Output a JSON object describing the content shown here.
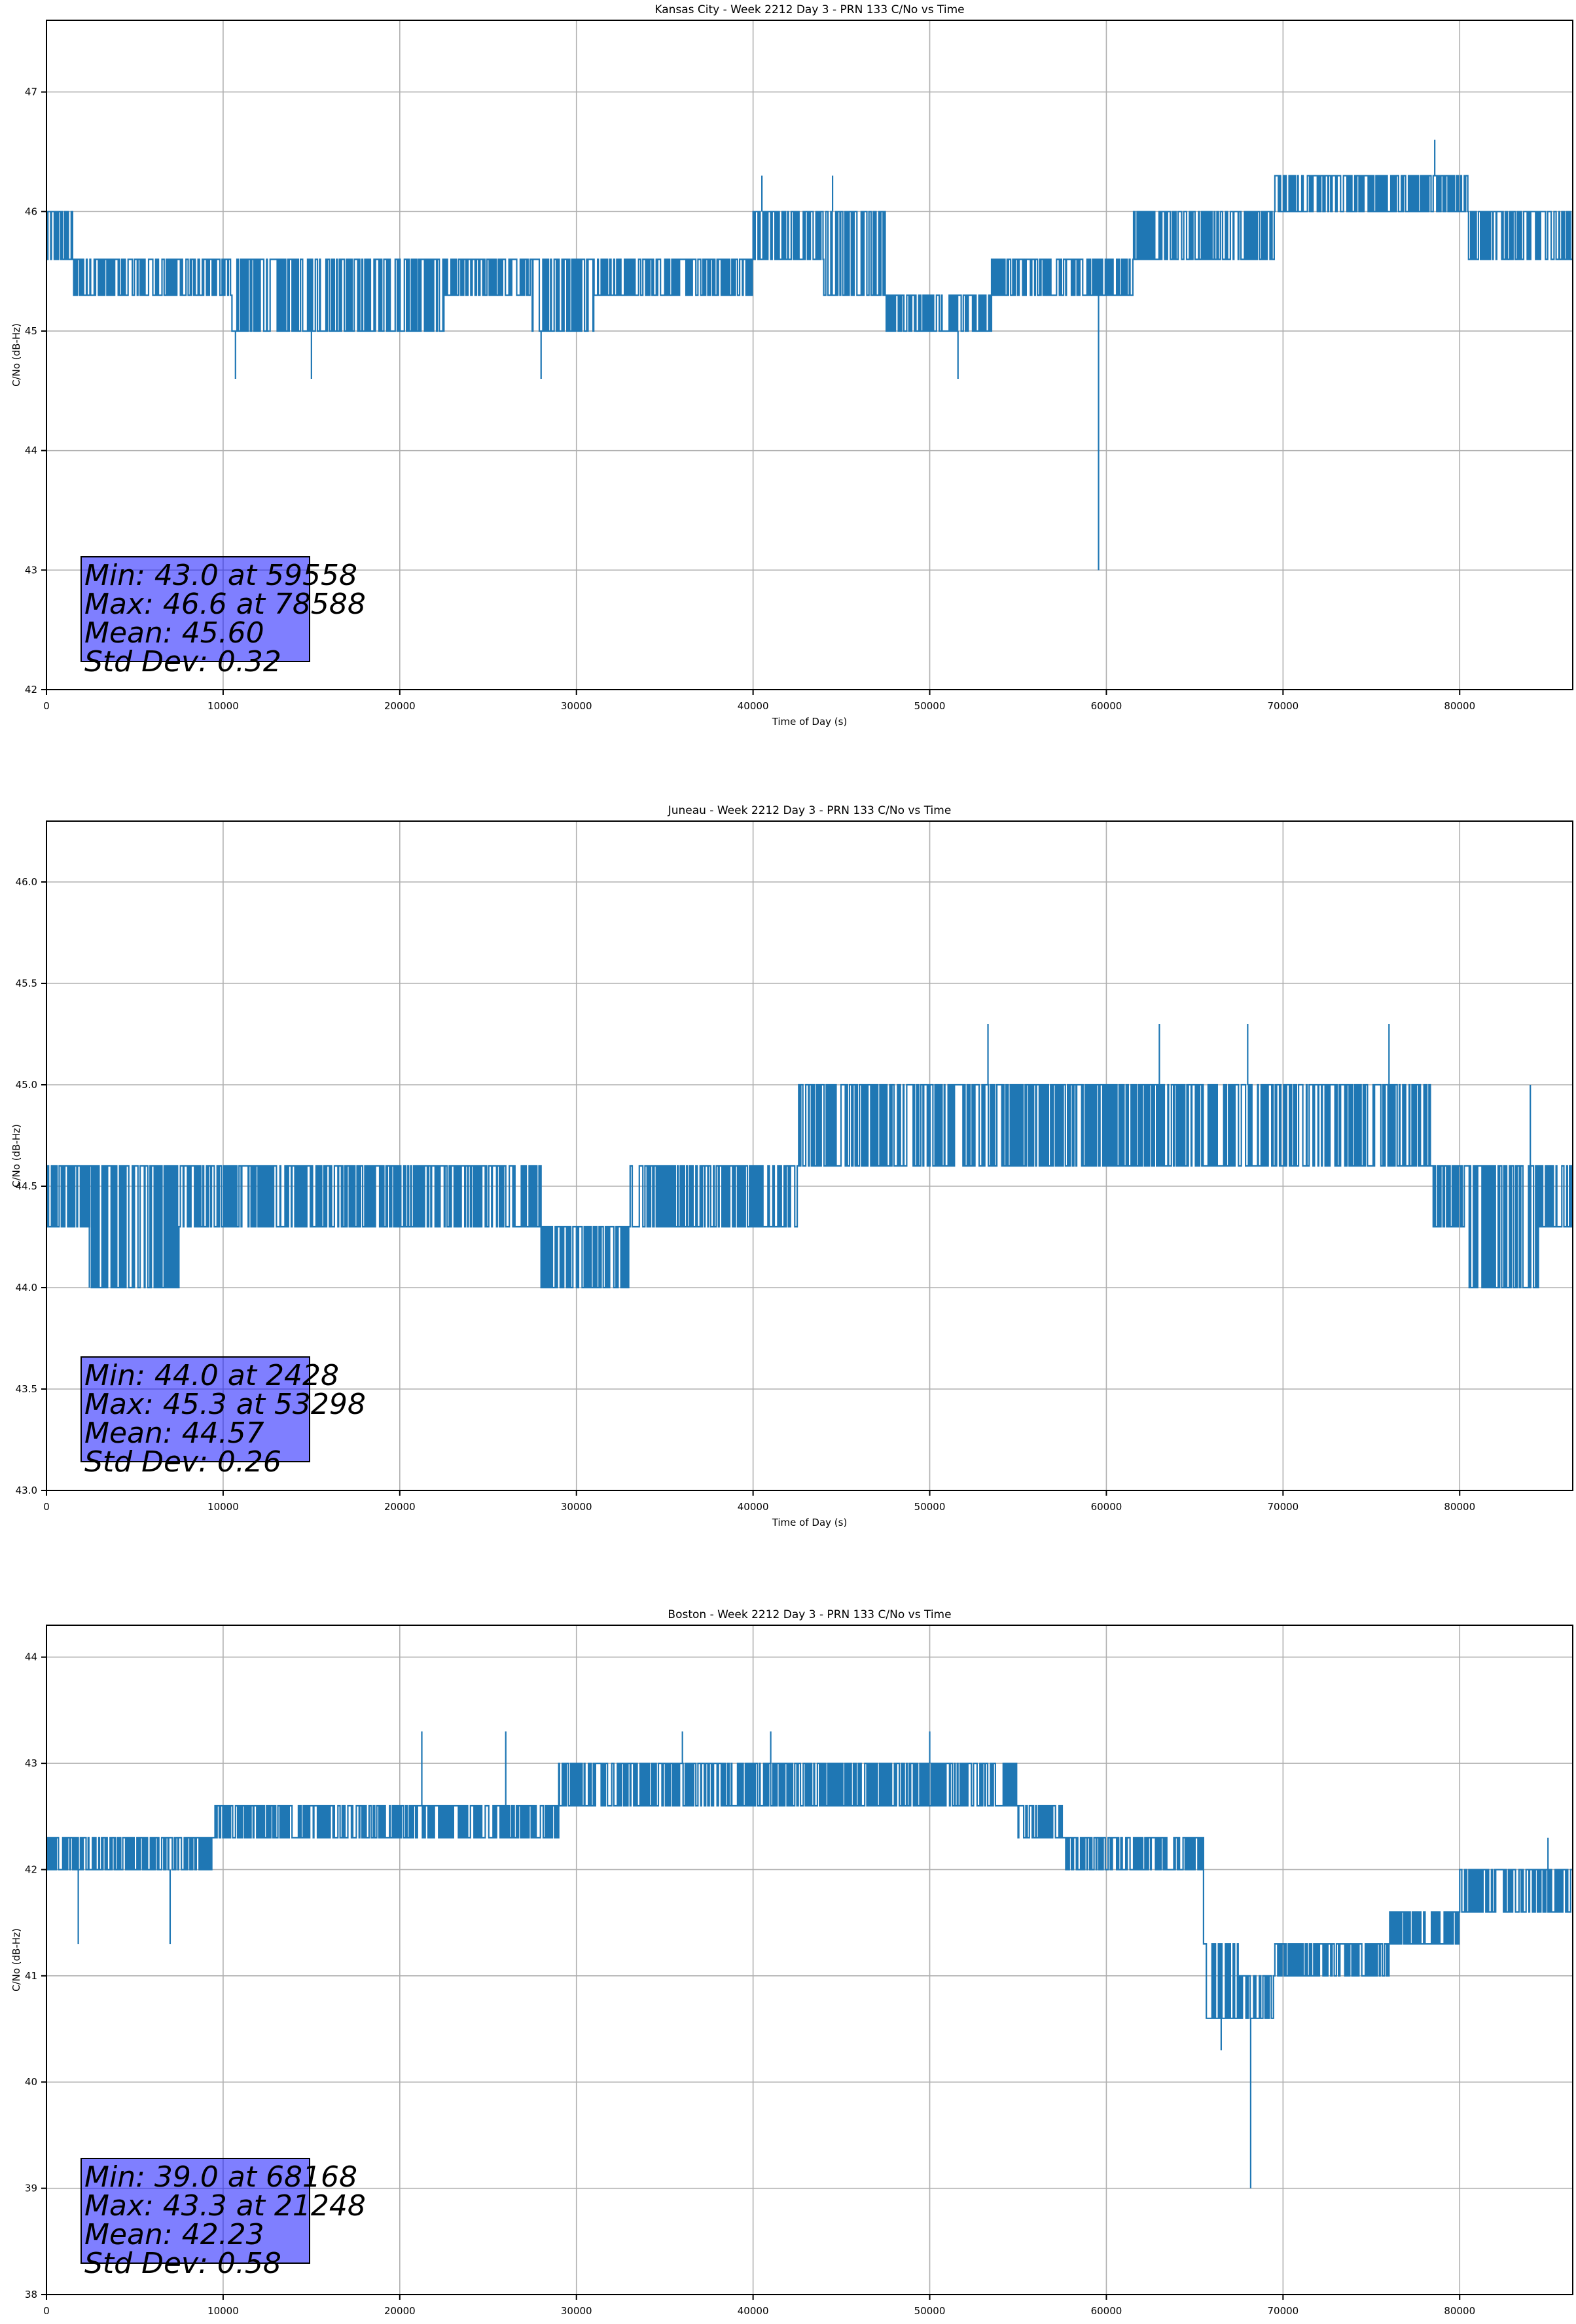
{
  "colors": {
    "line": "#1f77b4",
    "grid": "#b0b0b0",
    "stats_box": "#8080ff"
  },
  "chart_data": [
    {
      "type": "line",
      "title": "Kansas City - Week 2212 Day 3 - PRN 133 C/No vs Time",
      "xlabel": "Time of Day (s)",
      "ylabel": "C/No (dB-Hz)",
      "xlim": [
        0,
        86400
      ],
      "ylim": [
        42,
        47.6
      ],
      "xticks": [
        0,
        10000,
        20000,
        30000,
        40000,
        50000,
        60000,
        70000,
        80000
      ],
      "xtick_labels": [
        "0",
        "10000",
        "20000",
        "30000",
        "40000",
        "50000",
        "60000",
        "70000",
        "80000"
      ],
      "yticks": [
        42,
        43,
        44,
        45,
        46,
        47
      ],
      "ytick_labels": [
        "42",
        "43",
        "44",
        "45",
        "46",
        "47"
      ],
      "grid": true,
      "levels": [
        45.0,
        45.3,
        45.6,
        46.0,
        46.3
      ],
      "segments": [
        {
          "x0": 0,
          "x1": 1500,
          "low": 45.6,
          "high": 46.0
        },
        {
          "x0": 1500,
          "x1": 10500,
          "low": 45.3,
          "high": 45.6
        },
        {
          "x0": 10500,
          "x1": 14500,
          "low": 45.0,
          "high": 45.6
        },
        {
          "x0": 14500,
          "x1": 21000,
          "low": 45.0,
          "high": 45.6
        },
        {
          "x0": 21000,
          "x1": 22500,
          "low": 45.0,
          "high": 45.6
        },
        {
          "x0": 22500,
          "x1": 27500,
          "low": 45.3,
          "high": 45.6
        },
        {
          "x0": 27500,
          "x1": 31000,
          "low": 45.0,
          "high": 45.6
        },
        {
          "x0": 31000,
          "x1": 40000,
          "low": 45.3,
          "high": 45.6
        },
        {
          "x0": 40000,
          "x1": 44000,
          "low": 45.6,
          "high": 46.0
        },
        {
          "x0": 44000,
          "x1": 47500,
          "low": 45.3,
          "high": 46.0
        },
        {
          "x0": 47500,
          "x1": 53500,
          "low": 45.0,
          "high": 45.3
        },
        {
          "x0": 53500,
          "x1": 61500,
          "low": 45.3,
          "high": 45.6
        },
        {
          "x0": 61500,
          "x1": 69500,
          "low": 45.6,
          "high": 46.0
        },
        {
          "x0": 69500,
          "x1": 80500,
          "low": 46.0,
          "high": 46.3
        },
        {
          "x0": 80500,
          "x1": 86400,
          "low": 45.6,
          "high": 46.0
        }
      ],
      "spikes": [
        {
          "x": 10700,
          "y": 44.6
        },
        {
          "x": 15000,
          "y": 44.6
        },
        {
          "x": 28000,
          "y": 44.6
        },
        {
          "x": 40500,
          "y": 46.3
        },
        {
          "x": 44500,
          "y": 46.3
        },
        {
          "x": 51600,
          "y": 44.6
        },
        {
          "x": 59558,
          "y": 43.0
        },
        {
          "x": 78588,
          "y": 46.6
        }
      ],
      "stats": {
        "min": "Min: 43.0 at 59558",
        "max": "Max: 46.6 at 78588",
        "mean": "Mean: 45.60",
        "std": "Std Dev: 0.32"
      }
    },
    {
      "type": "line",
      "title": "Juneau - Week 2212 Day 3 - PRN 133 C/No vs Time",
      "xlabel": "Time of Day (s)",
      "ylabel": "C/No (dB-Hz)",
      "xlim": [
        0,
        86400
      ],
      "ylim": [
        43.0,
        46.3
      ],
      "xticks": [
        0,
        10000,
        20000,
        30000,
        40000,
        50000,
        60000,
        70000,
        80000
      ],
      "xtick_labels": [
        "0",
        "10000",
        "20000",
        "30000",
        "40000",
        "50000",
        "60000",
        "70000",
        "80000"
      ],
      "yticks": [
        43.0,
        43.5,
        44.0,
        44.5,
        45.0,
        45.5,
        46.0
      ],
      "ytick_labels": [
        "43.0",
        "43.5",
        "44.0",
        "44.5",
        "45.0",
        "45.5",
        "46.0"
      ],
      "grid": true,
      "levels": [
        44.0,
        44.3,
        44.6,
        45.0,
        45.3
      ],
      "segments": [
        {
          "x0": 0,
          "x1": 2500,
          "low": 44.3,
          "high": 44.6
        },
        {
          "x0": 2500,
          "x1": 7500,
          "low": 44.0,
          "high": 44.6
        },
        {
          "x0": 7500,
          "x1": 21000,
          "low": 44.3,
          "high": 44.6
        },
        {
          "x0": 21000,
          "x1": 28000,
          "low": 44.3,
          "high": 44.6
        },
        {
          "x0": 28000,
          "x1": 33000,
          "low": 44.0,
          "high": 44.3
        },
        {
          "x0": 33000,
          "x1": 42500,
          "low": 44.3,
          "high": 44.6
        },
        {
          "x0": 42500,
          "x1": 51000,
          "low": 44.6,
          "high": 45.0
        },
        {
          "x0": 51000,
          "x1": 71500,
          "low": 44.6,
          "high": 45.0
        },
        {
          "x0": 71500,
          "x1": 78500,
          "low": 44.6,
          "high": 45.0
        },
        {
          "x0": 78500,
          "x1": 80500,
          "low": 44.3,
          "high": 44.6
        },
        {
          "x0": 80500,
          "x1": 84500,
          "low": 44.0,
          "high": 44.6
        },
        {
          "x0": 84500,
          "x1": 86400,
          "low": 44.3,
          "high": 44.6
        }
      ],
      "spikes": [
        {
          "x": 2428,
          "y": 44.0
        },
        {
          "x": 53298,
          "y": 45.3
        },
        {
          "x": 63000,
          "y": 45.3
        },
        {
          "x": 68000,
          "y": 45.3
        },
        {
          "x": 76000,
          "y": 45.3
        },
        {
          "x": 84000,
          "y": 45.0
        }
      ],
      "stats": {
        "min": "Min: 44.0 at 2428",
        "max": "Max: 45.3 at 53298",
        "mean": "Mean: 44.57",
        "std": "Std Dev: 0.26"
      }
    },
    {
      "type": "line",
      "title": "Boston - Week 2212 Day 3 - PRN 133 C/No vs Time",
      "xlabel": "Time of Day (s)",
      "ylabel": "C/No (dB-Hz)",
      "xlim": [
        0,
        86400
      ],
      "ylim": [
        38,
        44.3
      ],
      "xticks": [
        0,
        10000,
        20000,
        30000,
        40000,
        50000,
        60000,
        70000,
        80000
      ],
      "xtick_labels": [
        "0",
        "10000",
        "20000",
        "30000",
        "40000",
        "50000",
        "60000",
        "70000",
        "80000"
      ],
      "yticks": [
        38,
        39,
        40,
        41,
        42,
        43,
        44
      ],
      "ytick_labels": [
        "38",
        "39",
        "40",
        "41",
        "42",
        "43",
        "44"
      ],
      "grid": true,
      "levels": [
        40.6,
        41.0,
        41.3,
        41.6,
        42.0,
        42.3,
        42.6,
        43.0,
        43.3
      ],
      "segments": [
        {
          "x0": 0,
          "x1": 9500,
          "low": 42.0,
          "high": 42.3
        },
        {
          "x0": 9500,
          "x1": 21000,
          "low": 42.3,
          "high": 42.6
        },
        {
          "x0": 21000,
          "x1": 29000,
          "low": 42.3,
          "high": 42.6
        },
        {
          "x0": 29000,
          "x1": 52000,
          "low": 42.6,
          "high": 43.0
        },
        {
          "x0": 52000,
          "x1": 55000,
          "low": 42.6,
          "high": 43.0
        },
        {
          "x0": 55000,
          "x1": 57500,
          "low": 42.3,
          "high": 42.6
        },
        {
          "x0": 57500,
          "x1": 65500,
          "low": 42.0,
          "high": 42.3
        },
        {
          "x0": 65500,
          "x1": 67500,
          "low": 40.6,
          "high": 41.3
        },
        {
          "x0": 67500,
          "x1": 69500,
          "low": 40.6,
          "high": 41.0
        },
        {
          "x0": 69500,
          "x1": 76000,
          "low": 41.0,
          "high": 41.3
        },
        {
          "x0": 76000,
          "x1": 80000,
          "low": 41.3,
          "high": 41.6
        },
        {
          "x0": 80000,
          "x1": 86400,
          "low": 41.6,
          "high": 42.0
        }
      ],
      "spikes": [
        {
          "x": 1800,
          "y": 41.3
        },
        {
          "x": 7000,
          "y": 41.3
        },
        {
          "x": 21248,
          "y": 43.3
        },
        {
          "x": 26000,
          "y": 43.3
        },
        {
          "x": 36000,
          "y": 43.3
        },
        {
          "x": 41000,
          "y": 43.3
        },
        {
          "x": 50000,
          "y": 43.3
        },
        {
          "x": 66500,
          "y": 40.3
        },
        {
          "x": 68168,
          "y": 39.0
        },
        {
          "x": 85000,
          "y": 42.3
        }
      ],
      "stats": {
        "min": "Min: 39.0 at 68168",
        "max": "Max: 43.3 at 21248",
        "mean": "Mean: 42.23",
        "std": "Std Dev: 0.58"
      }
    }
  ]
}
